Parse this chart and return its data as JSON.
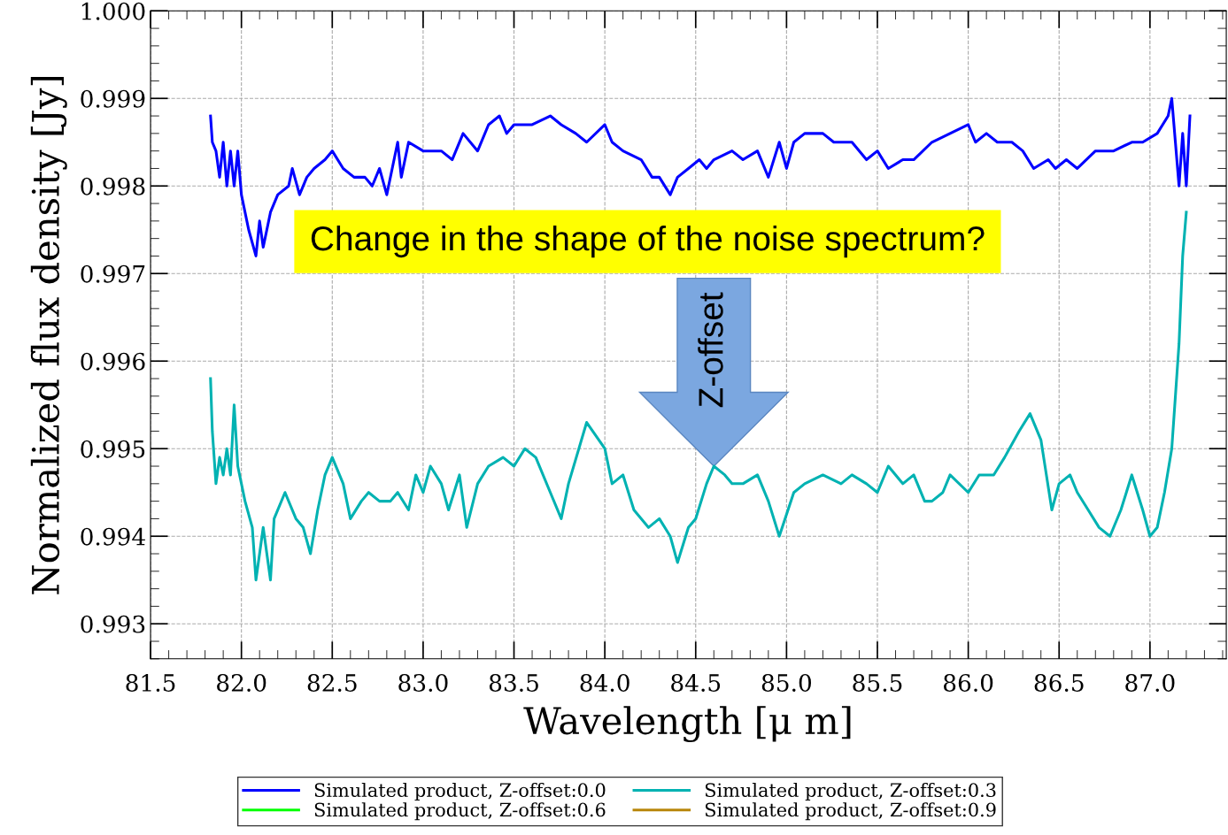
{
  "chart_data": {
    "type": "line",
    "xlabel": "Wavelength [μ m]",
    "ylabel": "Normalized flux density [Jy]",
    "xlim": [
      81.5,
      87.42
    ],
    "ylim": [
      0.9926,
      1.0
    ],
    "xticks": [
      {
        "value": 81.5,
        "label": "81.5"
      },
      {
        "value": 82,
        "label": "82.0"
      },
      {
        "value": 82.5,
        "label": "82.5"
      },
      {
        "value": 83,
        "label": "83.0"
      },
      {
        "value": 83.5,
        "label": "83.5"
      },
      {
        "value": 84,
        "label": "84.0"
      },
      {
        "value": 84.5,
        "label": "84.5"
      },
      {
        "value": 85,
        "label": "85.0"
      },
      {
        "value": 85.5,
        "label": "85.5"
      },
      {
        "value": 86,
        "label": "86.0"
      },
      {
        "value": 86.5,
        "label": "86.5"
      },
      {
        "value": 87,
        "label": "87.0"
      }
    ],
    "yticks": [
      {
        "value": 0.993,
        "label": "0.993"
      },
      {
        "value": 0.994,
        "label": "0.994"
      },
      {
        "value": 0.995,
        "label": "0.995"
      },
      {
        "value": 0.996,
        "label": "0.996"
      },
      {
        "value": 0.997,
        "label": "0.997"
      },
      {
        "value": 0.998,
        "label": "0.998"
      },
      {
        "value": 0.999,
        "label": "0.999"
      },
      {
        "value": 1.0,
        "label": "1.000"
      }
    ],
    "grid": true,
    "legend": "bottom",
    "line_style": "solid",
    "marker": "none",
    "annotations": [
      "Change in the shape of the noise spectrum?",
      {
        "text": "Z-offset",
        "x": 84.6,
        "y": 0.9948
      }
    ],
    "series": [
      {
        "name": "Simulated product, Z-offset:0.0",
        "color": "#0000ff",
        "x": [
          81.83,
          81.84,
          81.86,
          81.88,
          81.9,
          81.92,
          81.94,
          81.96,
          81.98,
          82.0,
          82.04,
          82.08,
          82.1,
          82.12,
          82.16,
          82.2,
          82.26,
          82.28,
          82.32,
          82.36,
          82.4,
          82.46,
          82.5,
          82.56,
          82.62,
          82.68,
          82.72,
          82.76,
          82.8,
          82.86,
          82.88,
          82.92,
          83.0,
          83.1,
          83.16,
          83.22,
          83.3,
          83.36,
          83.42,
          83.46,
          83.5,
          83.6,
          83.7,
          83.76,
          83.84,
          83.9,
          84.0,
          84.04,
          84.1,
          84.2,
          84.26,
          84.3,
          84.36,
          84.4,
          84.46,
          84.52,
          84.56,
          84.6,
          84.7,
          84.76,
          84.84,
          84.9,
          84.96,
          85.0,
          85.04,
          85.1,
          85.2,
          85.26,
          85.36,
          85.44,
          85.5,
          85.56,
          85.64,
          85.7,
          85.8,
          85.9,
          86.0,
          86.04,
          86.1,
          86.16,
          86.24,
          86.3,
          86.36,
          86.44,
          86.48,
          86.54,
          86.6,
          86.7,
          86.8,
          86.9,
          86.96,
          87.04,
          87.1,
          87.12,
          87.14,
          87.16,
          87.18,
          87.2,
          87.22
        ],
        "values": [
          0.9988,
          0.9985,
          0.9984,
          0.9981,
          0.9985,
          0.998,
          0.9984,
          0.998,
          0.9984,
          0.9979,
          0.9975,
          0.9972,
          0.9976,
          0.9973,
          0.9977,
          0.9979,
          0.998,
          0.9982,
          0.9979,
          0.9981,
          0.9982,
          0.9983,
          0.9984,
          0.9982,
          0.9981,
          0.9981,
          0.998,
          0.9982,
          0.9979,
          0.9985,
          0.9981,
          0.9985,
          0.9984,
          0.9984,
          0.9983,
          0.9986,
          0.9984,
          0.9987,
          0.9988,
          0.9986,
          0.9987,
          0.9987,
          0.9988,
          0.9987,
          0.9986,
          0.9985,
          0.9987,
          0.9985,
          0.9984,
          0.9983,
          0.9981,
          0.9981,
          0.9979,
          0.9981,
          0.9982,
          0.9983,
          0.9982,
          0.9983,
          0.9984,
          0.9983,
          0.9984,
          0.9981,
          0.9985,
          0.9982,
          0.9985,
          0.9986,
          0.9986,
          0.9985,
          0.9985,
          0.9983,
          0.9984,
          0.9982,
          0.9983,
          0.9983,
          0.9985,
          0.9986,
          0.9987,
          0.9985,
          0.9986,
          0.9985,
          0.9985,
          0.9984,
          0.9982,
          0.9983,
          0.9982,
          0.9983,
          0.9982,
          0.9984,
          0.9984,
          0.9985,
          0.9985,
          0.9986,
          0.9988,
          0.999,
          0.9985,
          0.998,
          0.9986,
          0.998,
          0.9988
        ]
      },
      {
        "name": "Simulated product, Z-offset:0.3",
        "color": "#00b2b2",
        "x": [
          81.83,
          81.84,
          81.86,
          81.88,
          81.9,
          81.92,
          81.94,
          81.96,
          81.98,
          82.02,
          82.06,
          82.08,
          82.12,
          82.16,
          82.18,
          82.24,
          82.3,
          82.34,
          82.38,
          82.42,
          82.46,
          82.5,
          82.56,
          82.6,
          82.66,
          82.7,
          82.76,
          82.82,
          82.86,
          82.92,
          82.96,
          83.0,
          83.04,
          83.1,
          83.14,
          83.2,
          83.24,
          83.3,
          83.36,
          83.44,
          83.5,
          83.56,
          83.62,
          83.7,
          83.76,
          83.8,
          83.9,
          84.0,
          84.04,
          84.1,
          84.16,
          84.24,
          84.3,
          84.36,
          84.4,
          84.46,
          84.5,
          84.56,
          84.6,
          84.66,
          84.7,
          84.76,
          84.84,
          84.9,
          84.96,
          85.04,
          85.1,
          85.2,
          85.3,
          85.36,
          85.44,
          85.5,
          85.56,
          85.64,
          85.7,
          85.76,
          85.8,
          85.86,
          85.9,
          86.0,
          86.06,
          86.14,
          86.2,
          86.28,
          86.34,
          86.4,
          86.46,
          86.5,
          86.56,
          86.6,
          86.66,
          86.72,
          86.78,
          86.84,
          86.9,
          86.96,
          87.0,
          87.04,
          87.08,
          87.12,
          87.14,
          87.16,
          87.18,
          87.2
        ],
        "values": [
          0.9958,
          0.9952,
          0.9946,
          0.9949,
          0.9947,
          0.995,
          0.9947,
          0.9955,
          0.9948,
          0.9944,
          0.9941,
          0.9935,
          0.9941,
          0.9935,
          0.9942,
          0.9945,
          0.9942,
          0.9941,
          0.9938,
          0.9943,
          0.9947,
          0.9949,
          0.9946,
          0.9942,
          0.9944,
          0.9945,
          0.9944,
          0.9944,
          0.9945,
          0.9943,
          0.9947,
          0.9945,
          0.9948,
          0.9946,
          0.9943,
          0.9947,
          0.9941,
          0.9946,
          0.9948,
          0.9949,
          0.9948,
          0.995,
          0.9949,
          0.9945,
          0.9942,
          0.9946,
          0.9953,
          0.995,
          0.9946,
          0.9947,
          0.9943,
          0.9941,
          0.9942,
          0.994,
          0.9937,
          0.9941,
          0.9942,
          0.9946,
          0.9948,
          0.9947,
          0.9946,
          0.9946,
          0.9947,
          0.9944,
          0.994,
          0.9945,
          0.9946,
          0.9947,
          0.9946,
          0.9947,
          0.9946,
          0.9945,
          0.9948,
          0.9946,
          0.9947,
          0.9944,
          0.9944,
          0.9945,
          0.9947,
          0.9945,
          0.9947,
          0.9947,
          0.9949,
          0.9952,
          0.9954,
          0.9951,
          0.9943,
          0.9946,
          0.9947,
          0.9945,
          0.9943,
          0.9941,
          0.994,
          0.9943,
          0.9947,
          0.9943,
          0.994,
          0.9941,
          0.9945,
          0.995,
          0.9956,
          0.9962,
          0.9972,
          0.9977
        ]
      },
      {
        "name": "Simulated product, Z-offset:0.6",
        "color": "#00ff00"
      },
      {
        "name": "Simulated product, Z-offset:0.9",
        "color": "#b8860b"
      }
    ]
  }
}
